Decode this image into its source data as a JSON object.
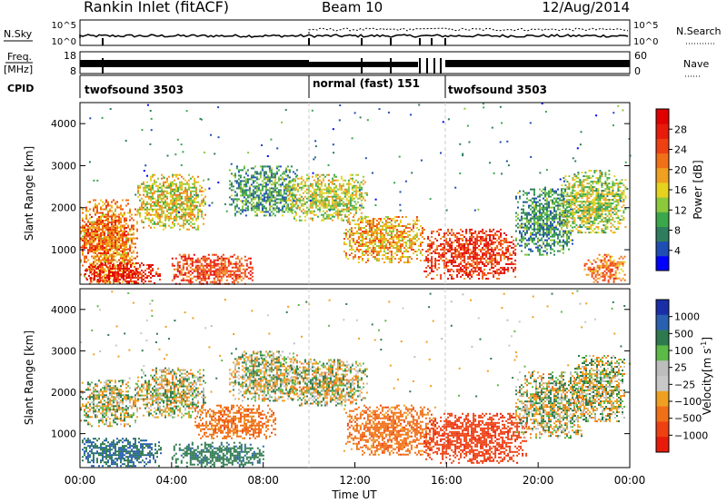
{
  "header": {
    "station": "Rankin Inlet (fitACF)",
    "beam": "Beam 10",
    "date": "12/Aug/2014"
  },
  "summary_panels": {
    "nsky_label": "N.Sky",
    "nsky_ticks": [
      "10^5",
      "10^0"
    ],
    "nsearch_label": "N.Search",
    "nsearch_ticks": [
      "10^5",
      "10^0"
    ],
    "freq_label_top": "Freq.",
    "freq_label_bottom": "[MHz]",
    "freq_ticks": [
      "18",
      "8"
    ],
    "nave_label": "Nave",
    "nave_ticks": [
      "60",
      "0"
    ],
    "cpid_label": "CPID",
    "cpid_segments": [
      {
        "label": "twofsound 3503",
        "start_h": 0,
        "end_h": 10
      },
      {
        "label": "normal (fast) 151",
        "start_h": 10,
        "end_h": 16
      },
      {
        "label": "twofsound 3503",
        "start_h": 16,
        "end_h": 24
      }
    ]
  },
  "chart_data": [
    {
      "type": "heatmap",
      "quantity": "power",
      "ylabel": "Slant Range [km]",
      "xlabel": "Time UT",
      "xlim": [
        0,
        24
      ],
      "ylim": [
        180,
        4500
      ],
      "x_tick_labels": [
        "00:00",
        "04:00",
        "08:00",
        "12:00",
        "16:00",
        "20:00",
        "00:00"
      ],
      "y_ticks": [
        1000,
        2000,
        3000,
        4000
      ],
      "colorbar": {
        "label": "Power [dB]",
        "range": [
          0,
          32
        ],
        "ticks": [
          4,
          8,
          12,
          16,
          20,
          24,
          28
        ],
        "colors": [
          "#0000ff",
          "#1e4db4",
          "#2e7d5e",
          "#3aa84a",
          "#8cc83c",
          "#e6d21e",
          "#f0a020",
          "#f07018",
          "#ee4012",
          "#e81a0a",
          "#e00000"
        ]
      },
      "echo_regions": [
        {
          "t0": 0.0,
          "t1": 2.5,
          "r0": 200,
          "r1": 2200,
          "p": 20
        },
        {
          "t0": 0.2,
          "t1": 3.5,
          "r0": 220,
          "r1": 700,
          "p": 28
        },
        {
          "t0": 0.0,
          "t1": 2.0,
          "r0": 900,
          "r1": 1800,
          "p": 23
        },
        {
          "t0": 2.5,
          "t1": 5.5,
          "r0": 1500,
          "r1": 2800,
          "p": 16
        },
        {
          "t0": 4.0,
          "t1": 7.5,
          "r0": 200,
          "r1": 900,
          "p": 25
        },
        {
          "t0": 6.5,
          "t1": 9.5,
          "r0": 1800,
          "r1": 3000,
          "p": 9
        },
        {
          "t0": 9.0,
          "t1": 12.5,
          "r0": 1700,
          "r1": 2800,
          "p": 15
        },
        {
          "t0": 11.5,
          "t1": 15.0,
          "r0": 700,
          "r1": 1800,
          "p": 19
        },
        {
          "t0": 15.0,
          "t1": 19.0,
          "r0": 300,
          "r1": 1500,
          "p": 26
        },
        {
          "t0": 19.0,
          "t1": 21.5,
          "r0": 900,
          "r1": 2500,
          "p": 9
        },
        {
          "t0": 21.0,
          "t1": 23.8,
          "r0": 1400,
          "r1": 2900,
          "p": 14
        },
        {
          "t0": 22.0,
          "t1": 23.8,
          "r0": 250,
          "r1": 900,
          "p": 22
        }
      ]
    },
    {
      "type": "heatmap",
      "quantity": "velocity",
      "ylabel": "Slant Range [km]",
      "xlabel": "Time UT",
      "xlim": [
        0,
        24
      ],
      "ylim": [
        180,
        4500
      ],
      "x_tick_labels": [
        "00:00",
        "04:00",
        "08:00",
        "12:00",
        "16:00",
        "20:00",
        "00:00"
      ],
      "y_ticks": [
        1000,
        2000,
        3000,
        4000
      ],
      "colorbar": {
        "label_main": "Velocity",
        "label_unit_prefix": "[m s",
        "label_unit_sup": "-1",
        "label_unit_suffix": "]",
        "ticks": [
          "1000",
          "500",
          "100",
          "25",
          "−25",
          "−100",
          "−500",
          "−1000"
        ],
        "colors": [
          "#1a2ea8",
          "#2a60b0",
          "#2e7a4e",
          "#5cba46",
          "#bdbdbd",
          "#c8c8c8",
          "#f0a020",
          "#f07018",
          "#ee4012",
          "#e81a0a"
        ]
      },
      "echo_regions": [
        {
          "t0": 0.0,
          "t1": 3.5,
          "r0": 200,
          "r1": 900,
          "v": 300
        },
        {
          "t0": 0.0,
          "t1": 2.5,
          "r0": 1200,
          "r1": 2300,
          "v": 0
        },
        {
          "t0": 2.5,
          "t1": 5.5,
          "r0": 1400,
          "r1": 2600,
          "v": 0
        },
        {
          "t0": 4.0,
          "t1": 8.0,
          "r0": 200,
          "r1": 800,
          "v": 200
        },
        {
          "t0": 5.0,
          "t1": 8.5,
          "r0": 900,
          "r1": 1700,
          "v": -200
        },
        {
          "t0": 6.5,
          "t1": 9.5,
          "r0": 1800,
          "r1": 3000,
          "v": 0
        },
        {
          "t0": 9.0,
          "t1": 12.5,
          "r0": 1700,
          "r1": 2800,
          "v": 0
        },
        {
          "t0": 11.5,
          "t1": 15.5,
          "r0": 500,
          "r1": 1700,
          "v": -200
        },
        {
          "t0": 15.0,
          "t1": 19.5,
          "r0": 300,
          "r1": 1500,
          "v": -600
        },
        {
          "t0": 19.0,
          "t1": 22.0,
          "r0": 900,
          "r1": 2500,
          "v": 0
        },
        {
          "t0": 21.5,
          "t1": 23.8,
          "r0": 1300,
          "r1": 2900,
          "v": 0
        }
      ]
    }
  ]
}
